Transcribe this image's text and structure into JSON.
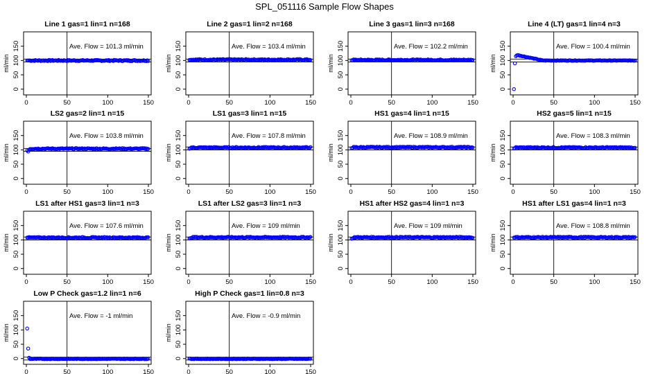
{
  "page": {
    "title": "SPL_051116  Sample Flow Shapes"
  },
  "colors": {
    "points": "#0000ff",
    "axis": "#000000",
    "background": "#ffffff"
  },
  "chart_data": [
    {
      "type": "scatter",
      "title": "Line 1 gas=1 lin=1 n=168",
      "annotation": "Ave. Flow =  101.3  ml/min",
      "ylabel": "ml/min",
      "xlim": [
        0,
        150
      ],
      "ylim": [
        -20,
        200
      ],
      "xticks": [
        0,
        50,
        100,
        150
      ],
      "yticks": [
        0,
        50,
        100,
        150
      ],
      "vline": 50,
      "hlines": [
        95,
        105
      ],
      "series": [
        {
          "y_first": [
            100,
            100
          ],
          "y_level": 100,
          "y_range": [
            98,
            102
          ]
        }
      ]
    },
    {
      "type": "scatter",
      "title": "Line 2 gas=1 lin=2 n=168",
      "annotation": "Ave. Flow =  103.4  ml/min",
      "ylabel": "ml/min",
      "xlim": [
        0,
        150
      ],
      "ylim": [
        -20,
        200
      ],
      "xticks": [
        0,
        50,
        100,
        150
      ],
      "yticks": [
        0,
        50,
        100,
        150
      ],
      "vline": 50,
      "hlines": [
        95,
        105
      ],
      "series": [
        {
          "y_first": [
            102,
            102
          ],
          "y_level": 103,
          "y_range": [
            101,
            105
          ]
        }
      ]
    },
    {
      "type": "scatter",
      "title": "Line 3 gas=1 lin=3 n=168",
      "annotation": "Ave. Flow =  102.2  ml/min",
      "ylabel": "ml/min",
      "xlim": [
        0,
        150
      ],
      "ylim": [
        -20,
        200
      ],
      "xticks": [
        0,
        50,
        100,
        150
      ],
      "yticks": [
        0,
        50,
        100,
        150
      ],
      "vline": 50,
      "hlines": [
        95,
        105
      ],
      "series": [
        {
          "y_first": [
            101,
            101
          ],
          "y_level": 102,
          "y_range": [
            100,
            104
          ]
        }
      ]
    },
    {
      "type": "scatter",
      "title": "Line 4 (LT) gas=1 lin=4 n=3",
      "annotation": "Ave. Flow =  100.4  ml/min",
      "ylabel": "ml/min",
      "xlim": [
        0,
        150
      ],
      "ylim": [
        -20,
        200
      ],
      "xticks": [
        0,
        50,
        100,
        150
      ],
      "yticks": [
        0,
        50,
        100,
        150
      ],
      "vline": 50,
      "hlines": [
        95,
        105
      ],
      "series": [
        {
          "y_first": [
            0,
            90,
            115,
            118,
            119
          ],
          "y_level": 100,
          "y_range": [
            99,
            101
          ],
          "y_decay": {
            "from": 118,
            "to": 100,
            "span": 30
          }
        }
      ]
    },
    {
      "type": "scatter",
      "title": "LS2 gas=2 lin=1 n=15",
      "annotation": "Ave. Flow =  103.8  ml/min",
      "ylabel": "ml/min",
      "xlim": [
        0,
        150
      ],
      "ylim": [
        -20,
        200
      ],
      "xticks": [
        0,
        50,
        100,
        150
      ],
      "yticks": [
        0,
        50,
        100,
        150
      ],
      "vline": 50,
      "hlines": [
        95,
        105
      ],
      "series": [
        {
          "y_first": [
            98,
            94,
            100
          ],
          "y_level": 104,
          "y_range": [
            102,
            106
          ]
        }
      ]
    },
    {
      "type": "scatter",
      "title": "LS1 gas=3 lin=1 n=15",
      "annotation": "Ave. Flow =  107.8  ml/min",
      "ylabel": "ml/min",
      "xlim": [
        0,
        150
      ],
      "ylim": [
        -20,
        200
      ],
      "xticks": [
        0,
        50,
        100,
        150
      ],
      "yticks": [
        0,
        50,
        100,
        150
      ],
      "vline": 50,
      "hlines": [
        100,
        110
      ],
      "series": [
        {
          "y_first": [
            104,
            106
          ],
          "y_level": 108,
          "y_range": [
            106,
            110
          ]
        }
      ]
    },
    {
      "type": "scatter",
      "title": "HS1 gas=4 lin=1 n=15",
      "annotation": "Ave. Flow =  108.9  ml/min",
      "ylabel": "ml/min",
      "xlim": [
        0,
        150
      ],
      "ylim": [
        -20,
        200
      ],
      "xticks": [
        0,
        50,
        100,
        150
      ],
      "yticks": [
        0,
        50,
        100,
        150
      ],
      "vline": 50,
      "hlines": [
        100,
        110
      ],
      "series": [
        {
          "y_first": [
            106,
            107
          ],
          "y_level": 109,
          "y_range": [
            107,
            111
          ]
        }
      ]
    },
    {
      "type": "scatter",
      "title": "HS2 gas=5 lin=1 n=15",
      "annotation": "Ave. Flow =  108.3  ml/min",
      "ylabel": "ml/min",
      "xlim": [
        0,
        150
      ],
      "ylim": [
        -20,
        200
      ],
      "xticks": [
        0,
        50,
        100,
        150
      ],
      "yticks": [
        0,
        50,
        100,
        150
      ],
      "vline": 50,
      "hlines": [
        100,
        110
      ],
      "series": [
        {
          "y_first": [
            105,
            106
          ],
          "y_level": 108,
          "y_range": [
            106,
            110
          ]
        }
      ]
    },
    {
      "type": "scatter",
      "title": "LS1 after HS1 gas=3 lin=1 n=3",
      "annotation": "Ave. Flow =  107.6  ml/min",
      "ylabel": "ml/min",
      "xlim": [
        0,
        150
      ],
      "ylim": [
        -20,
        200
      ],
      "xticks": [
        0,
        50,
        100,
        150
      ],
      "yticks": [
        0,
        50,
        100,
        150
      ],
      "vline": 50,
      "hlines": [
        100,
        110
      ],
      "series": [
        {
          "y_first": [
            108,
            108
          ],
          "y_level": 108,
          "y_range": [
            106,
            110
          ]
        }
      ]
    },
    {
      "type": "scatter",
      "title": "LS1 after LS2 gas=3 lin=1 n=3",
      "annotation": "Ave. Flow =  109  ml/min",
      "ylabel": "ml/min",
      "xlim": [
        0,
        150
      ],
      "ylim": [
        -20,
        200
      ],
      "xticks": [
        0,
        50,
        100,
        150
      ],
      "yticks": [
        0,
        50,
        100,
        150
      ],
      "vline": 50,
      "hlines": [
        100,
        110
      ],
      "series": [
        {
          "y_first": [
            105,
            106
          ],
          "y_level": 109,
          "y_range": [
            107,
            111
          ]
        }
      ]
    },
    {
      "type": "scatter",
      "title": "HS1 after HS2 gas=4 lin=1 n=3",
      "annotation": "Ave. Flow =  109  ml/min",
      "ylabel": "ml/min",
      "xlim": [
        0,
        150
      ],
      "ylim": [
        -20,
        200
      ],
      "xticks": [
        0,
        50,
        100,
        150
      ],
      "yticks": [
        0,
        50,
        100,
        150
      ],
      "vline": 50,
      "hlines": [
        100,
        110
      ],
      "series": [
        {
          "y_first": [
            104,
            105
          ],
          "y_level": 109,
          "y_range": [
            107,
            111
          ]
        }
      ]
    },
    {
      "type": "scatter",
      "title": "HS1 after LS1 gas=4 lin=1 n=3",
      "annotation": "Ave. Flow =  108.8  ml/min",
      "ylabel": "ml/min",
      "xlim": [
        0,
        150
      ],
      "ylim": [
        -20,
        200
      ],
      "xticks": [
        0,
        50,
        100,
        150
      ],
      "yticks": [
        0,
        50,
        100,
        150
      ],
      "vline": 50,
      "hlines": [
        100,
        110
      ],
      "series": [
        {
          "y_first": [
            108,
            108
          ],
          "y_level": 109,
          "y_range": [
            107,
            111
          ]
        }
      ]
    },
    {
      "type": "scatter",
      "title": "Low P Check gas=1.2 lin=1 n=6",
      "annotation": "Ave. Flow =  -1  ml/min",
      "ylabel": "ml/min",
      "xlim": [
        0,
        150
      ],
      "ylim": [
        -20,
        200
      ],
      "xticks": [
        0,
        50,
        100,
        150
      ],
      "yticks": [
        0,
        50,
        100,
        150
      ],
      "vline": 50,
      "hlines": [
        -5,
        5
      ],
      "series": [
        {
          "y_first": [
            105,
            35,
            3
          ],
          "y_level": -1,
          "y_range": [
            -2,
            0
          ]
        }
      ]
    },
    {
      "type": "scatter",
      "title": "High P Check gas=1 lin=0.8 n=3",
      "annotation": "Ave. Flow =  -0.9  ml/min",
      "ylabel": "ml/min",
      "xlim": [
        0,
        150
      ],
      "ylim": [
        -20,
        200
      ],
      "xticks": [
        0,
        50,
        100,
        150
      ],
      "yticks": [
        0,
        50,
        100,
        150
      ],
      "vline": 50,
      "hlines": [
        -5,
        5
      ],
      "series": [
        {
          "y_first": [
            0,
            0
          ],
          "y_level": -1,
          "y_range": [
            -2,
            0
          ]
        }
      ]
    }
  ]
}
